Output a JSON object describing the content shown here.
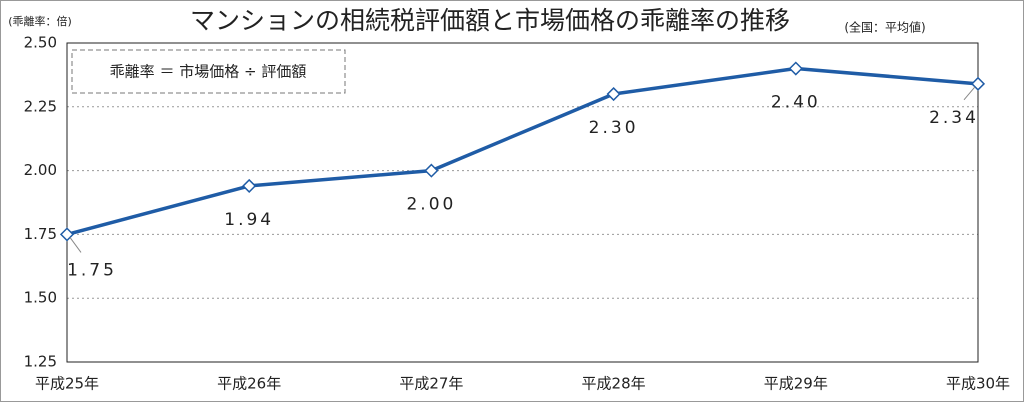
{
  "chart_data": {
    "type": "line",
    "title": "マンションの相続税評価額と市場価格の乖離率の推移",
    "subtitle": "(全国：平均値)",
    "y_label": "(乖離率：倍)",
    "annotation": "乖離率 ＝ 市場価格 ÷ 評価額",
    "categories": [
      "平成25年",
      "平成26年",
      "平成27年",
      "平成28年",
      "平成29年",
      "平成30年"
    ],
    "values": [
      1.75,
      1.94,
      2.0,
      2.3,
      2.4,
      2.34
    ],
    "value_labels": [
      "1.75",
      "1.94",
      "2.00",
      "2.30",
      "2.40",
      "2.34"
    ],
    "color": "#1f5ca6",
    "ylim": [
      1.25,
      2.5
    ],
    "yticks": [
      {
        "value": 1.25,
        "label": "1.25"
      },
      {
        "value": 1.5,
        "label": "1.50"
      },
      {
        "value": 1.75,
        "label": "1.75"
      },
      {
        "value": 2.0,
        "label": "2.00"
      },
      {
        "value": 2.25,
        "label": "2.25"
      },
      {
        "value": 2.5,
        "label": "2.50"
      }
    ],
    "grid": true
  }
}
